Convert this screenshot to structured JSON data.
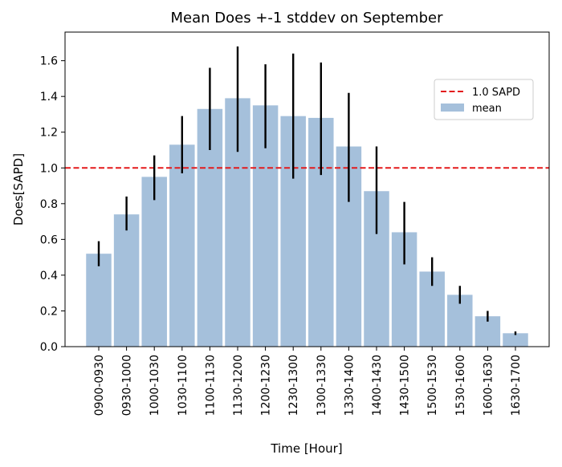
{
  "chart_data": {
    "type": "bar",
    "title": "Mean Does +-1 stddev on September",
    "xlabel": "Time [Hour]",
    "ylabel": "Does[SAPD]",
    "ylim": [
      0,
      1.76
    ],
    "yticks": [
      "0.0",
      "0.2",
      "0.4",
      "0.6",
      "0.8",
      "1.0",
      "1.2",
      "1.4",
      "1.6"
    ],
    "categories": [
      "0900-0930",
      "0930-1000",
      "1000-1030",
      "1030-1100",
      "1100-1130",
      "1130-1200",
      "1200-1230",
      "1230-1300",
      "1300-1330",
      "1330-1400",
      "1400-1430",
      "1430-1500",
      "1500-1530",
      "1530-1600",
      "1600-1630",
      "1630-1700"
    ],
    "series": [
      {
        "name": "mean",
        "values": [
          0.52,
          0.74,
          0.95,
          1.13,
          1.33,
          1.39,
          1.35,
          1.29,
          1.28,
          1.12,
          0.87,
          0.64,
          0.42,
          0.29,
          0.17,
          0.075
        ],
        "error_low": [
          0.45,
          0.65,
          0.82,
          0.97,
          1.1,
          1.09,
          1.11,
          0.94,
          0.96,
          0.81,
          0.63,
          0.46,
          0.34,
          0.24,
          0.14,
          0.065
        ],
        "error_high": [
          0.59,
          0.84,
          1.07,
          1.29,
          1.56,
          1.68,
          1.58,
          1.64,
          1.59,
          1.42,
          1.12,
          0.81,
          0.5,
          0.34,
          0.2,
          0.085
        ],
        "color": "#a5c0db"
      }
    ],
    "reference_line": {
      "name": "1.0 SAPD",
      "value": 1.0,
      "color": "#e31a1c",
      "style": "dashed"
    },
    "legend": {
      "position": "upper-right",
      "entries": [
        "1.0 SAPD",
        "mean"
      ]
    },
    "grid": false
  }
}
